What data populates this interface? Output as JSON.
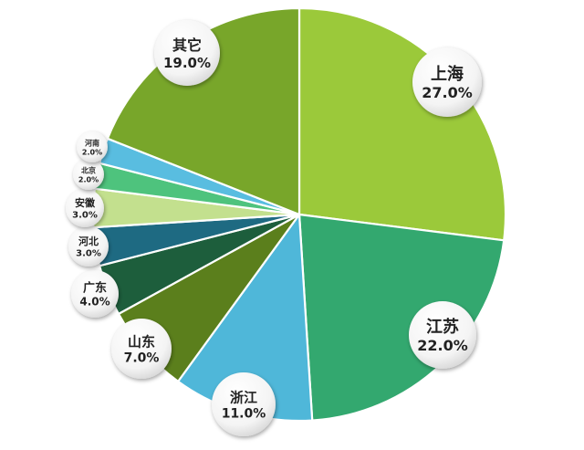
{
  "chart_data": {
    "type": "pie",
    "start_angle_deg": 0,
    "direction": "clockwise",
    "slices": [
      {
        "label": "上海",
        "value": 27.0,
        "value_label": "27.0%",
        "color": "#9bc93a"
      },
      {
        "label": "江苏",
        "value": 22.0,
        "value_label": "22.0%",
        "color": "#33a86f"
      },
      {
        "label": "浙江",
        "value": 11.0,
        "value_label": "11.0%",
        "color": "#4fb7d9"
      },
      {
        "label": "山东",
        "value": 7.0,
        "value_label": "7.0%",
        "color": "#5b7f1c"
      },
      {
        "label": "广东",
        "value": 4.0,
        "value_label": "4.0%",
        "color": "#1d5e3c"
      },
      {
        "label": "河北",
        "value": 3.0,
        "value_label": "3.0%",
        "color": "#1e6a82"
      },
      {
        "label": "安徽",
        "value": 3.0,
        "value_label": "3.0%",
        "color": "#c3e08e"
      },
      {
        "label": "北京",
        "value": 2.0,
        "value_label": "2.0%",
        "color": "#4ec37d"
      },
      {
        "label": "河南",
        "value": 2.0,
        "value_label": "2.0%",
        "color": "#59bde0"
      },
      {
        "label": "其它",
        "value": 19.0,
        "value_label": "19.0%",
        "color": "#78a62a"
      }
    ]
  }
}
